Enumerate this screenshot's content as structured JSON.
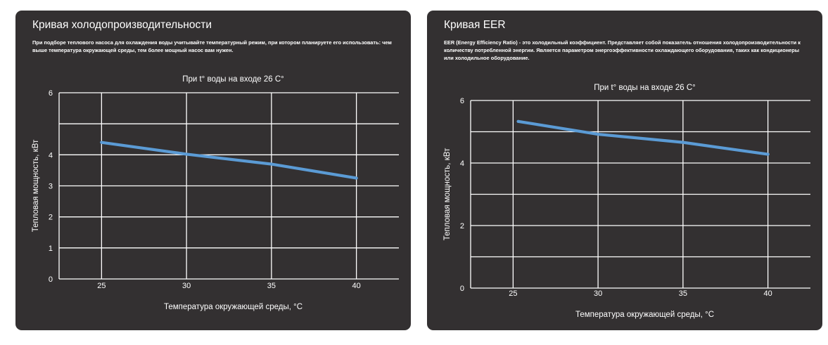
{
  "cards": [
    {
      "title": "Кривая холодопроизводительности",
      "description": "При подборе теплового насоса для охлаждения воды учитывайте температурный режим, при котором планируете его использовать: чем выше температура окружающей среды, тем более мощный насос вам нужен."
    },
    {
      "title": "Кривая EER",
      "description": "EER (Energy Efficiency Ratio) - это холодильный коэффициент. Представляет собой показатель отношения холодопроизводительности к количеству потребленной энергии. Является параметром энергоэффективности охлаждающего оборудования, таких как кондиционеры или холодильное оборудование."
    }
  ],
  "colors": {
    "card_background": "#333031",
    "grid": "#ffffff",
    "line": "#5b9bd5"
  },
  "chart_data": [
    {
      "type": "line",
      "title": "При t° воды на входе 26 С°",
      "xlabel": "Температура окружающей среды, °С",
      "ylabel": "Тепловая мощность, кВт",
      "xlim": [
        22.5,
        42.5
      ],
      "ylim": [
        0,
        6
      ],
      "xticks": [
        25,
        30,
        35,
        40
      ],
      "yticks": [
        0,
        1,
        2,
        3,
        4,
        6
      ],
      "grid": true,
      "series": [
        {
          "x": [
            25,
            30,
            35,
            40
          ],
          "y": [
            4.4,
            4.02,
            3.7,
            3.25
          ]
        }
      ]
    },
    {
      "type": "line",
      "title": "При t° воды на входе 26 С°",
      "xlabel": "Температура окружающей среды, °С",
      "ylabel": "Тепловая мощность, кВт",
      "xlim": [
        22.5,
        42.5
      ],
      "ylim": [
        0,
        6
      ],
      "xticks": [
        25,
        30,
        35,
        40
      ],
      "yticks": [
        0,
        2,
        4,
        6
      ],
      "grid": true,
      "series": [
        {
          "x": [
            25.3,
            30,
            35,
            40
          ],
          "y": [
            5.33,
            4.92,
            4.66,
            4.28
          ]
        }
      ]
    }
  ]
}
